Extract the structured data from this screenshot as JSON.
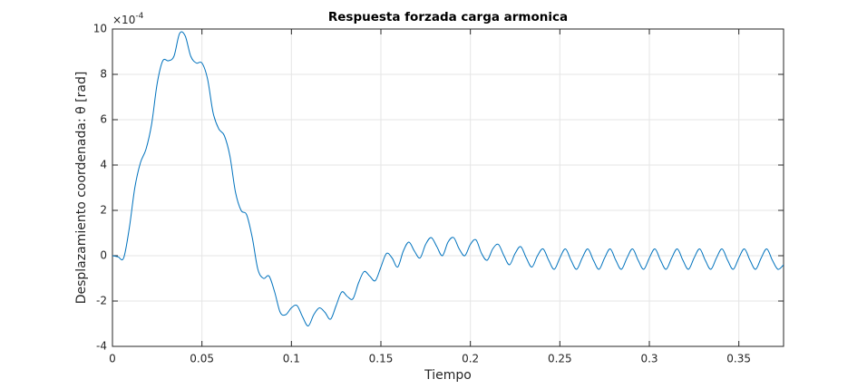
{
  "chart_data": {
    "type": "line",
    "title": "Respuesta forzada carga armonica",
    "x_label": "Tiempo",
    "y_label": "Desplazamiento coordenada: θ [rad]",
    "y_multiplier": {
      "base": "×10",
      "exponent": "-4"
    },
    "xlim": [
      0,
      0.375
    ],
    "ylim": [
      -4,
      10
    ],
    "xticks": [
      0,
      0.05,
      0.1,
      0.15,
      0.2,
      0.25,
      0.3,
      0.35
    ],
    "yticks": [
      -4,
      -2,
      0,
      2,
      4,
      6,
      8,
      10
    ],
    "grid": true,
    "x": [
      0,
      0.003125,
      0.00625,
      0.009375,
      0.0125,
      0.015625,
      0.01875,
      0.021875,
      0.025,
      0.028125,
      0.03125,
      0.034375,
      0.0375,
      0.040625,
      0.04375,
      0.046875,
      0.05,
      0.053125,
      0.05625,
      0.059375,
      0.0625,
      0.065625,
      0.06875,
      0.071875,
      0.075,
      0.078125,
      0.08125,
      0.084375,
      0.0875,
      0.090625,
      0.09375,
      0.096875,
      0.1,
      0.103125,
      0.10625,
      0.109375,
      0.1125,
      0.115625,
      0.11875,
      0.121875,
      0.125,
      0.128125,
      0.13125,
      0.134375,
      0.1375,
      0.140625,
      0.14375,
      0.146875,
      0.15,
      0.153125,
      0.15625,
      0.159375,
      0.1625,
      0.165625,
      0.16875,
      0.171875,
      0.175,
      0.178125,
      0.18125,
      0.184375,
      0.1875,
      0.190625,
      0.19375,
      0.196875,
      0.2,
      0.203125,
      0.20625,
      0.209375,
      0.2125,
      0.215625,
      0.21875,
      0.221875,
      0.225,
      0.228125,
      0.23125,
      0.234375,
      0.2375,
      0.240625,
      0.24375,
      0.246875,
      0.25,
      0.253125,
      0.25625,
      0.259375,
      0.2625,
      0.265625,
      0.26875,
      0.271875,
      0.275,
      0.278125,
      0.28125,
      0.284375,
      0.2875,
      0.290625,
      0.29375,
      0.296875,
      0.3,
      0.303125,
      0.30625,
      0.309375,
      0.3125,
      0.315625,
      0.31875,
      0.321875,
      0.325,
      0.328125,
      0.33125,
      0.334375,
      0.3375,
      0.340625,
      0.34375,
      0.346875,
      0.35,
      0.353125,
      0.35625,
      0.359375,
      0.3625,
      0.365625,
      0.36875,
      0.371875,
      0.375
    ],
    "series": [
      {
        "color": "#0072bd",
        "values": [
          0,
          -0.05,
          -0.1,
          1.2,
          3.0,
          4.1,
          4.7,
          5.8,
          7.6,
          8.6,
          8.6,
          8.8,
          9.8,
          9.7,
          8.8,
          8.5,
          8.5,
          7.8,
          6.3,
          5.6,
          5.3,
          4.4,
          2.8,
          2.0,
          1.8,
          0.8,
          -0.6,
          -1.0,
          -0.9,
          -1.6,
          -2.5,
          -2.6,
          -2.3,
          -2.2,
          -2.7,
          -3.1,
          -2.6,
          -2.3,
          -2.5,
          -2.8,
          -2.2,
          -1.6,
          -1.8,
          -1.9,
          -1.2,
          -0.7,
          -0.9,
          -1.1,
          -0.5,
          0.1,
          -0.1,
          -0.5,
          0.2,
          0.6,
          0.2,
          -0.1,
          0.5,
          0.8,
          0.4,
          0.0,
          0.6,
          0.8,
          0.3,
          0.0,
          0.5,
          0.7,
          0.1,
          -0.2,
          0.3,
          0.5,
          0.0,
          -0.4,
          0.1,
          0.4,
          -0.1,
          -0.5,
          0.0,
          0.3,
          -0.2,
          -0.6,
          -0.1,
          0.3,
          -0.2,
          -0.6,
          -0.1,
          0.3,
          -0.2,
          -0.6,
          -0.1,
          0.3,
          -0.2,
          -0.6,
          -0.1,
          0.3,
          -0.2,
          -0.6,
          -0.1,
          0.3,
          -0.2,
          -0.6,
          -0.1,
          0.3,
          -0.2,
          -0.6,
          -0.1,
          0.3,
          -0.2,
          -0.6,
          -0.1,
          0.3,
          -0.2,
          -0.6,
          -0.1,
          0.3,
          -0.2,
          -0.6,
          -0.1,
          0.3,
          -0.2,
          -0.6,
          -0.4
        ]
      }
    ]
  }
}
